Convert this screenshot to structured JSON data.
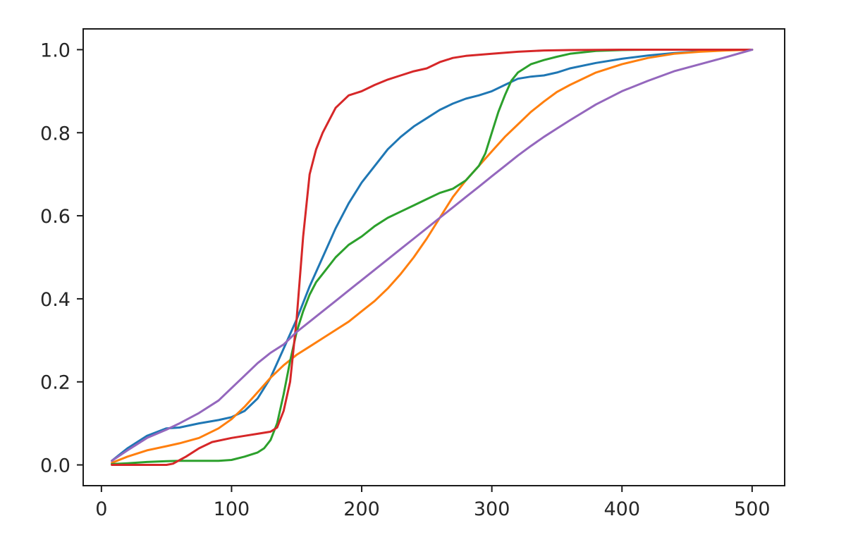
{
  "chart_data": {
    "type": "line",
    "title": "",
    "xlabel": "",
    "ylabel": "",
    "xlim": [
      -14,
      525
    ],
    "ylim": [
      -0.05,
      1.05
    ],
    "x_ticks": [
      0,
      100,
      200,
      300,
      400,
      500
    ],
    "x_tick_labels": [
      "0",
      "100",
      "200",
      "300",
      "400",
      "500"
    ],
    "y_ticks": [
      0.0,
      0.2,
      0.4,
      0.6,
      0.8,
      1.0
    ],
    "y_tick_labels": [
      "0.0",
      "0.2",
      "0.4",
      "0.6",
      "0.8",
      "1.0"
    ],
    "grid": false,
    "legend": "none",
    "series": [
      {
        "color": "#1f77b4",
        "x": [
          8,
          20,
          35,
          50,
          60,
          75,
          90,
          100,
          110,
          120,
          130,
          140,
          150,
          160,
          170,
          180,
          190,
          200,
          210,
          220,
          230,
          240,
          250,
          260,
          270,
          280,
          290,
          300,
          310,
          320,
          330,
          340,
          350,
          360,
          380,
          400,
          420,
          440,
          460,
          480,
          500
        ],
        "y": [
          0.01,
          0.04,
          0.07,
          0.088,
          0.09,
          0.1,
          0.108,
          0.115,
          0.13,
          0.16,
          0.21,
          0.28,
          0.35,
          0.43,
          0.5,
          0.57,
          0.63,
          0.68,
          0.72,
          0.76,
          0.79,
          0.815,
          0.835,
          0.855,
          0.87,
          0.882,
          0.89,
          0.9,
          0.915,
          0.93,
          0.935,
          0.938,
          0.945,
          0.955,
          0.968,
          0.978,
          0.986,
          0.992,
          0.996,
          0.999,
          1.0
        ]
      },
      {
        "color": "#ff7f0e",
        "x": [
          8,
          20,
          35,
          50,
          60,
          75,
          90,
          100,
          110,
          120,
          130,
          140,
          150,
          160,
          170,
          180,
          190,
          200,
          210,
          220,
          230,
          240,
          250,
          260,
          270,
          280,
          290,
          300,
          310,
          320,
          330,
          340,
          350,
          360,
          380,
          400,
          420,
          440,
          460,
          480,
          500
        ],
        "y": [
          0.005,
          0.02,
          0.035,
          0.045,
          0.052,
          0.065,
          0.088,
          0.11,
          0.14,
          0.175,
          0.21,
          0.24,
          0.265,
          0.285,
          0.305,
          0.325,
          0.345,
          0.37,
          0.395,
          0.425,
          0.46,
          0.5,
          0.545,
          0.595,
          0.645,
          0.685,
          0.72,
          0.755,
          0.79,
          0.82,
          0.85,
          0.875,
          0.898,
          0.915,
          0.945,
          0.965,
          0.98,
          0.99,
          0.995,
          0.998,
          1.0
        ]
      },
      {
        "color": "#2ca02c",
        "x": [
          8,
          20,
          35,
          50,
          60,
          75,
          90,
          100,
          110,
          120,
          125,
          130,
          135,
          140,
          145,
          150,
          155,
          160,
          165,
          170,
          180,
          190,
          200,
          210,
          220,
          230,
          240,
          250,
          260,
          270,
          280,
          290,
          295,
          300,
          305,
          310,
          315,
          320,
          330,
          340,
          350,
          360,
          380,
          400,
          420,
          440,
          460,
          480,
          500
        ],
        "y": [
          0.002,
          0.004,
          0.007,
          0.009,
          0.01,
          0.01,
          0.01,
          0.012,
          0.02,
          0.03,
          0.04,
          0.06,
          0.1,
          0.17,
          0.25,
          0.32,
          0.37,
          0.41,
          0.44,
          0.46,
          0.5,
          0.53,
          0.55,
          0.575,
          0.595,
          0.61,
          0.625,
          0.64,
          0.655,
          0.665,
          0.685,
          0.72,
          0.75,
          0.8,
          0.85,
          0.89,
          0.925,
          0.945,
          0.965,
          0.975,
          0.983,
          0.99,
          0.997,
          0.999,
          1.0,
          1.0,
          1.0,
          1.0,
          1.0
        ]
      },
      {
        "color": "#d62728",
        "x": [
          8,
          20,
          35,
          50,
          55,
          65,
          75,
          85,
          100,
          110,
          120,
          130,
          135,
          140,
          145,
          150,
          155,
          160,
          165,
          170,
          175,
          180,
          190,
          200,
          210,
          220,
          230,
          240,
          250,
          260,
          270,
          280,
          300,
          320,
          340,
          360,
          400,
          440,
          480,
          500
        ],
        "y": [
          0.0,
          0.0,
          0.0,
          0.0,
          0.003,
          0.02,
          0.04,
          0.055,
          0.065,
          0.07,
          0.075,
          0.08,
          0.09,
          0.13,
          0.2,
          0.35,
          0.55,
          0.7,
          0.76,
          0.8,
          0.83,
          0.86,
          0.89,
          0.9,
          0.915,
          0.928,
          0.938,
          0.948,
          0.955,
          0.97,
          0.98,
          0.985,
          0.99,
          0.995,
          0.998,
          0.999,
          1.0,
          1.0,
          1.0,
          1.0
        ]
      },
      {
        "color": "#9467bd",
        "x": [
          8,
          20,
          35,
          50,
          60,
          75,
          90,
          100,
          110,
          120,
          130,
          140,
          150,
          160,
          170,
          180,
          190,
          200,
          210,
          220,
          230,
          240,
          250,
          260,
          270,
          280,
          290,
          300,
          310,
          320,
          330,
          340,
          350,
          360,
          380,
          400,
          420,
          440,
          460,
          480,
          500
        ],
        "y": [
          0.01,
          0.035,
          0.065,
          0.085,
          0.1,
          0.125,
          0.155,
          0.185,
          0.215,
          0.245,
          0.27,
          0.29,
          0.32,
          0.345,
          0.37,
          0.395,
          0.42,
          0.445,
          0.47,
          0.495,
          0.52,
          0.545,
          0.57,
          0.595,
          0.62,
          0.645,
          0.67,
          0.695,
          0.72,
          0.745,
          0.768,
          0.79,
          0.81,
          0.83,
          0.868,
          0.9,
          0.925,
          0.948,
          0.965,
          0.982,
          1.0
        ]
      }
    ]
  }
}
